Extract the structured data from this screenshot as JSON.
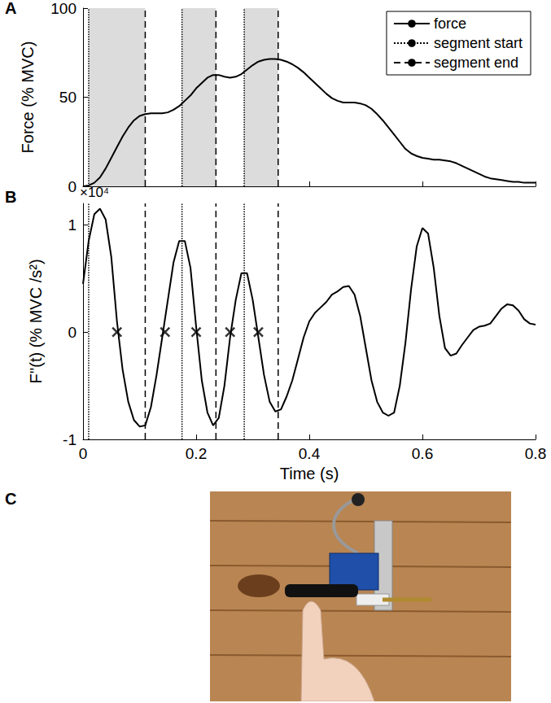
{
  "chart_data": [
    {
      "panel": "A",
      "type": "line",
      "ylabel": "Force (% MVC)",
      "xlim": [
        0,
        0.8
      ],
      "xticks": [
        0,
        0.2,
        0.4,
        0.6,
        0.8
      ],
      "ylim": [
        0,
        100
      ],
      "yticks": [
        0,
        50,
        100
      ],
      "tick_labels": "y",
      "legend": "upper right",
      "grid": false,
      "series": [
        {
          "name": "force",
          "type": "line",
          "line_style": "solid",
          "color": "#000000",
          "x": [
            0,
            0.01,
            0.02,
            0.03,
            0.04,
            0.05,
            0.06,
            0.07,
            0.08,
            0.09,
            0.1,
            0.11,
            0.12,
            0.13,
            0.14,
            0.15,
            0.16,
            0.17,
            0.18,
            0.19,
            0.2,
            0.21,
            0.22,
            0.23,
            0.24,
            0.25,
            0.26,
            0.27,
            0.28,
            0.29,
            0.3,
            0.31,
            0.32,
            0.33,
            0.34,
            0.35,
            0.36,
            0.37,
            0.38,
            0.39,
            0.4,
            0.41,
            0.42,
            0.43,
            0.44,
            0.45,
            0.46,
            0.47,
            0.48,
            0.49,
            0.5,
            0.51,
            0.52,
            0.53,
            0.54,
            0.55,
            0.56,
            0.57,
            0.58,
            0.59,
            0.6,
            0.61,
            0.62,
            0.63,
            0.64,
            0.65,
            0.66,
            0.67,
            0.68,
            0.69,
            0.7,
            0.71,
            0.72,
            0.73,
            0.74,
            0.75,
            0.76,
            0.77,
            0.78,
            0.79,
            0.8
          ],
          "values": [
            0,
            0.5,
            2,
            5,
            10,
            16,
            22,
            28,
            33,
            37,
            39.5,
            40.5,
            41,
            41,
            41,
            41.5,
            43,
            45,
            48,
            51,
            55,
            58,
            61,
            62.5,
            62.5,
            61.5,
            61,
            61.5,
            63,
            65.5,
            68,
            70,
            71,
            71.5,
            71.5,
            71,
            70,
            68.5,
            66.5,
            64,
            61,
            58,
            55,
            52,
            49.5,
            48,
            47,
            47,
            47,
            46.5,
            45.5,
            43.5,
            40.5,
            37,
            33,
            29,
            25,
            21,
            18.5,
            17,
            16,
            15.5,
            15,
            15,
            14.5,
            14,
            13,
            11.5,
            10,
            8.5,
            7,
            5.5,
            4.5,
            4,
            3.5,
            3,
            2.5,
            2.5,
            2,
            2,
            2
          ]
        },
        {
          "name": "segment start",
          "type": "vline",
          "line_style": "dotted",
          "color": "#000000",
          "x": [
            0.01,
            0.175,
            0.285
          ]
        },
        {
          "name": "segment end",
          "type": "vline",
          "line_style": "dashed",
          "color": "#000000",
          "x": [
            0.11,
            0.235,
            0.345
          ]
        }
      ]
    },
    {
      "panel": "B",
      "type": "line",
      "ylabel": "F''(t) (% MVC /s²)",
      "xlabel": "Time (s)",
      "annotation": "×10⁴",
      "xlim": [
        0,
        0.8
      ],
      "xticks": [
        0,
        0.2,
        0.4,
        0.6,
        0.8
      ],
      "ylim": [
        -1,
        1.2
      ],
      "yticks": [
        -1,
        0,
        1
      ],
      "grid": false,
      "series": [
        {
          "type": "line",
          "line_style": "solid",
          "color": "#000000",
          "x": [
            0,
            0.01,
            0.02,
            0.03,
            0.04,
            0.05,
            0.06,
            0.07,
            0.08,
            0.09,
            0.1,
            0.11,
            0.12,
            0.13,
            0.14,
            0.15,
            0.16,
            0.17,
            0.18,
            0.19,
            0.2,
            0.21,
            0.22,
            0.23,
            0.24,
            0.25,
            0.26,
            0.27,
            0.28,
            0.29,
            0.3,
            0.31,
            0.32,
            0.33,
            0.34,
            0.35,
            0.36,
            0.37,
            0.38,
            0.39,
            0.4,
            0.41,
            0.42,
            0.43,
            0.44,
            0.45,
            0.46,
            0.47,
            0.48,
            0.49,
            0.5,
            0.51,
            0.52,
            0.53,
            0.54,
            0.55,
            0.56,
            0.57,
            0.58,
            0.59,
            0.6,
            0.61,
            0.62,
            0.63,
            0.64,
            0.65,
            0.66,
            0.67,
            0.68,
            0.69,
            0.7,
            0.71,
            0.72,
            0.73,
            0.74,
            0.75,
            0.76,
            0.77,
            0.78,
            0.79,
            0.8
          ],
          "values": [
            0.45,
            0.85,
            1.1,
            1.15,
            1.05,
            0.7,
            0.1,
            -0.35,
            -0.65,
            -0.82,
            -0.88,
            -0.87,
            -0.7,
            -0.4,
            -0.05,
            0.3,
            0.65,
            0.85,
            0.85,
            0.6,
            0.05,
            -0.45,
            -0.75,
            -0.87,
            -0.8,
            -0.5,
            -0.05,
            0.3,
            0.55,
            0.55,
            0.3,
            -0.05,
            -0.4,
            -0.65,
            -0.74,
            -0.72,
            -0.6,
            -0.45,
            -0.25,
            -0.05,
            0.1,
            0.18,
            0.23,
            0.28,
            0.35,
            0.38,
            0.42,
            0.43,
            0.35,
            0.15,
            -0.15,
            -0.45,
            -0.65,
            -0.75,
            -0.78,
            -0.75,
            -0.5,
            -0.1,
            0.4,
            0.8,
            0.97,
            0.92,
            0.6,
            0.15,
            -0.15,
            -0.22,
            -0.2,
            -0.12,
            -0.05,
            0.02,
            0.05,
            0.06,
            0.08,
            0.15,
            0.22,
            0.26,
            0.25,
            0.2,
            0.12,
            0.08,
            0.07
          ]
        },
        {
          "type": "vline",
          "line_style": "dotted",
          "color": "#000000",
          "x": [
            0.01,
            0.175,
            0.285
          ]
        },
        {
          "type": "vline",
          "line_style": "dashed",
          "color": "#000000",
          "x": [
            0.11,
            0.235,
            0.345
          ]
        },
        {
          "type": "scatter",
          "marker": "x",
          "color": "#000000",
          "x": [
            0.06,
            0.145,
            0.2,
            0.26,
            0.31
          ],
          "values": [
            0,
            0,
            0,
            0,
            0
          ]
        }
      ]
    }
  ],
  "photo": {
    "panel": "C"
  }
}
